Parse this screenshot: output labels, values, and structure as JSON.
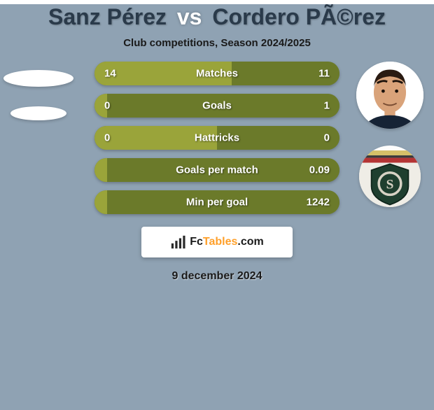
{
  "page_background_color": "#8fa2b3",
  "title": {
    "player1": "Sanz Pérez",
    "vs": "vs",
    "player2": "Cordero PÃ©rez",
    "player1_color": "#2a3a4a",
    "player2_color": "#2a3a4a"
  },
  "subtitle": "Club competitions, Season 2024/2025",
  "bars": {
    "left_color": "#9aa43a",
    "right_color": "#6b7a2a",
    "rows": [
      {
        "label": "Matches",
        "left_val": "14",
        "right_val": "11",
        "left_frac": 0.56,
        "right_frac": 0.44
      },
      {
        "label": "Goals",
        "left_val": "0",
        "right_val": "1",
        "left_frac": 0.05,
        "right_frac": 0.95
      },
      {
        "label": "Hattricks",
        "left_val": "0",
        "right_val": "0",
        "left_frac": 0.5,
        "right_frac": 0.5
      },
      {
        "label": "Goals per match",
        "left_val": "",
        "right_val": "0.09",
        "left_frac": 0.05,
        "right_frac": 0.95
      },
      {
        "label": "Min per goal",
        "left_val": "",
        "right_val": "1242",
        "left_frac": 0.05,
        "right_frac": 0.95
      }
    ]
  },
  "right_player": {
    "skin_color": "#d9a37a",
    "hair_color": "#2a1b12",
    "shirt_color": "#162335"
  },
  "right_club": {
    "shield_fill": "#1f3f2f",
    "shield_stroke": "#0f241a",
    "ring_stroke": "#d7d2c4",
    "letter": "S",
    "letter_color": "#d7d2c4",
    "stripe_top": "#d5c068",
    "stripe_mid": "#3a3a3a",
    "stripe_bot": "#b43434"
  },
  "badge": {
    "text_fc": "Fc",
    "text_tables": "Tables",
    "text_dotcom": ".com",
    "tables_color": "#ffa02a",
    "icon_color": "#2a2a2a"
  },
  "date": "9 december 2024"
}
